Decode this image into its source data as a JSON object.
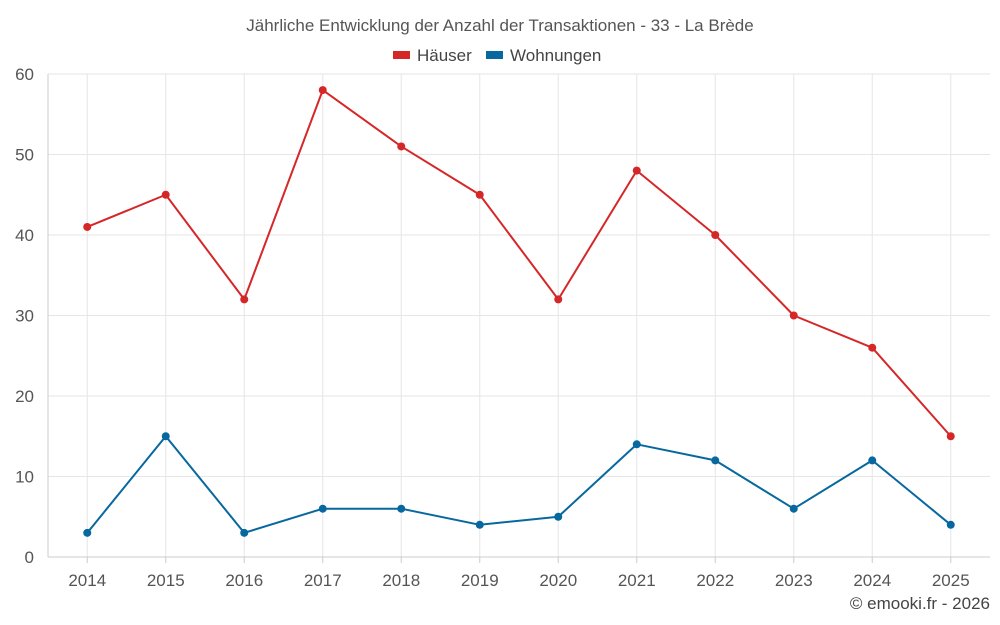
{
  "chart_data": {
    "type": "line",
    "title": "Jährliche Entwicklung der Anzahl der Transaktionen - 33 - La Brède",
    "categories": [
      "2014",
      "2015",
      "2016",
      "2017",
      "2018",
      "2019",
      "2020",
      "2021",
      "2022",
      "2023",
      "2024",
      "2025"
    ],
    "series": [
      {
        "name": "Häuser",
        "color": "#d62728",
        "values": [
          41,
          45,
          32,
          58,
          51,
          45,
          32,
          48,
          40,
          30,
          26,
          15
        ]
      },
      {
        "name": "Wohnungen",
        "color": "#07689f",
        "values": [
          3,
          15,
          3,
          6,
          6,
          4,
          5,
          14,
          12,
          6,
          12,
          4
        ]
      }
    ],
    "ylim": [
      0,
      60
    ],
    "yticks": [
      0,
      10,
      20,
      30,
      40,
      50,
      60
    ],
    "grid": true,
    "legend_position": "top-center",
    "credit": "© emooki.fr - 2026"
  }
}
